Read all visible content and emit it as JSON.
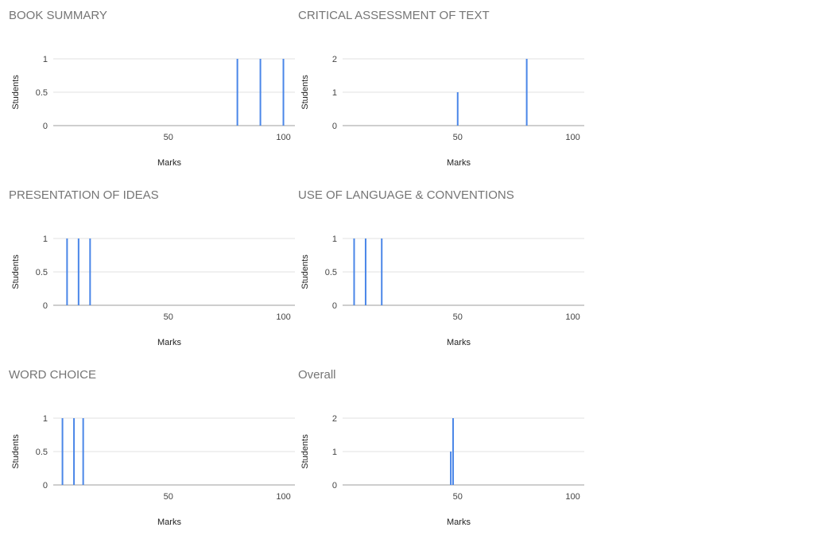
{
  "colors": {
    "bar": "#4a86e8",
    "grid": "#e0e0e0",
    "baseline": "#9e9e9e"
  },
  "chart_data": [
    {
      "type": "bar",
      "title": "BOOK SUMMARY",
      "xlabel": "Marks",
      "ylabel": "Students",
      "xlim": [
        0,
        105
      ],
      "ylim": [
        0,
        1
      ],
      "xticks": [
        "50",
        "100"
      ],
      "yticks": [
        "0",
        "0.5",
        "1"
      ],
      "grid": true,
      "x": [
        80,
        90,
        100
      ],
      "values": [
        1,
        1,
        1
      ]
    },
    {
      "type": "bar",
      "title": "CRITICAL ASSESSMENT OF TEXT",
      "xlabel": "Marks",
      "ylabel": "Students",
      "xlim": [
        0,
        105
      ],
      "ylim": [
        0,
        2
      ],
      "xticks": [
        "50",
        "100"
      ],
      "yticks": [
        "0",
        "1",
        "2"
      ],
      "grid": true,
      "x": [
        50,
        80
      ],
      "values": [
        1,
        2
      ]
    },
    {
      "type": "bar",
      "title": "PRESENTATION OF IDEAS",
      "xlabel": "Marks",
      "ylabel": "Students",
      "xlim": [
        0,
        105
      ],
      "ylim": [
        0,
        1
      ],
      "xticks": [
        "50",
        "100"
      ],
      "yticks": [
        "0",
        "0.5",
        "1"
      ],
      "grid": true,
      "x": [
        6,
        11,
        16
      ],
      "values": [
        1,
        1,
        1
      ]
    },
    {
      "type": "bar",
      "title": "USE OF LANGUAGE & CONVENTIONS",
      "xlabel": "Marks",
      "ylabel": "Students",
      "xlim": [
        0,
        105
      ],
      "ylim": [
        0,
        1
      ],
      "xticks": [
        "50",
        "100"
      ],
      "yticks": [
        "0",
        "0.5",
        "1"
      ],
      "grid": true,
      "x": [
        5,
        10,
        17
      ],
      "values": [
        1,
        1,
        1
      ]
    },
    {
      "type": "bar",
      "title": "WORD CHOICE",
      "xlabel": "Marks",
      "ylabel": "Students",
      "xlim": [
        0,
        105
      ],
      "ylim": [
        0,
        1
      ],
      "xticks": [
        "50",
        "100"
      ],
      "yticks": [
        "0",
        "0.5",
        "1"
      ],
      "grid": true,
      "x": [
        4,
        9,
        13
      ],
      "values": [
        1,
        1,
        1
      ]
    },
    {
      "type": "bar",
      "title": "Overall",
      "xlabel": "Marks",
      "ylabel": "Students",
      "xlim": [
        0,
        105
      ],
      "ylim": [
        0,
        2
      ],
      "xticks": [
        "50",
        "100"
      ],
      "yticks": [
        "0",
        "1",
        "2"
      ],
      "grid": true,
      "x": [
        47,
        48
      ],
      "values": [
        1,
        2
      ]
    }
  ]
}
